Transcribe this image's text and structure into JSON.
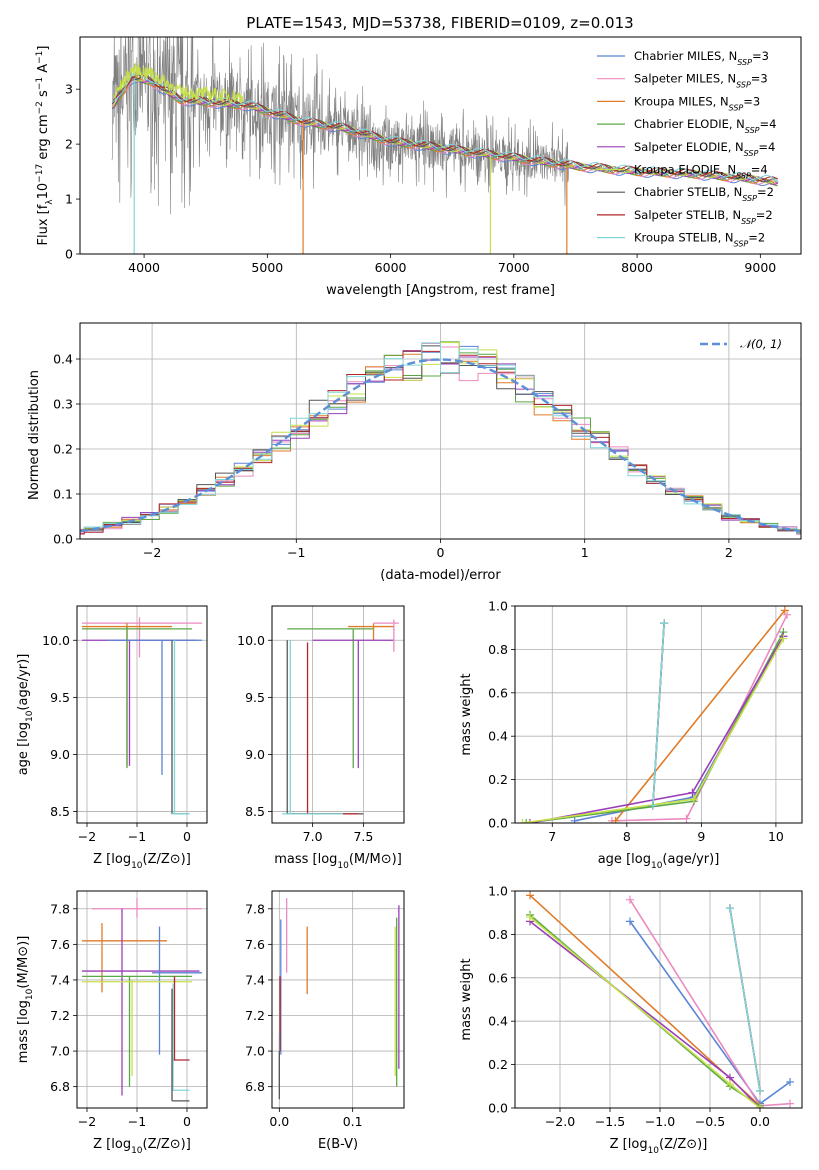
{
  "figure": {
    "title": "PLATE=1543, MJD=53738, FIBERID=0109, z=0.013"
  },
  "colors": {
    "Chabrier MILES": "#5b84d6",
    "Salpeter MILES": "#ec8ac0",
    "Kroupa MILES": "#e07b28",
    "Chabrier ELODIE": "#5aa845",
    "Salpeter ELODIE": "#9a3fb8",
    "Kroupa ELODIE": "#c6e04a",
    "Chabrier STELIB": "#555555",
    "Salpeter STELIB": "#b0262a",
    "Kroupa STELIB": "#7fd6d8",
    "data": "#808080",
    "gaussian": "#5b8fd6"
  },
  "chart_data": [
    {
      "id": "spectrum",
      "type": "line",
      "xlabel": "wavelength [Angstrom, rest frame]",
      "ylabel": "Flux [f$_\\lambda$10$^{-17}$ erg cm$^{-2}$ s$^{-1}$ A$^{-1}$]",
      "xlim": [
        3480,
        9330
      ],
      "ylim": [
        0,
        3.95
      ],
      "xticks": [
        "4000",
        "5000",
        "6000",
        "7000",
        "8000",
        "9000"
      ],
      "yticks": [
        "0",
        "1",
        "2",
        "3"
      ],
      "legend_position": "upper right",
      "legend": [
        {
          "label": "Chabrier MILES, N",
          "sub": "SSP",
          "suffix": "=3",
          "color": "#5b84d6"
        },
        {
          "label": "Salpeter MILES, N",
          "sub": "SSP",
          "suffix": "=3",
          "color": "#ec8ac0"
        },
        {
          "label": "Kroupa MILES, N",
          "sub": "SSP",
          "suffix": "=3",
          "color": "#e07b28"
        },
        {
          "label": "Chabrier ELODIE, N",
          "sub": "SSP",
          "suffix": "=4",
          "color": "#5aa845"
        },
        {
          "label": "Salpeter ELODIE, N",
          "sub": "SSP",
          "suffix": "=4",
          "color": "#9a3fb8"
        },
        {
          "label": "Kroupa ELODIE, N",
          "sub": "SSP",
          "suffix": "=4",
          "color": "#c6e04a"
        },
        {
          "label": "Chabrier STELIB, N",
          "sub": "SSP",
          "suffix": "=2",
          "color": "#555555"
        },
        {
          "label": "Salpeter STELIB, N",
          "sub": "SSP",
          "suffix": "=2",
          "color": "#b0262a"
        },
        {
          "label": "Kroupa STELIB, N",
          "sub": "SSP",
          "suffix": "=2",
          "color": "#7fd6d8"
        }
      ],
      "model_continuum": [
        [
          3750,
          2.7
        ],
        [
          3900,
          3.2
        ],
        [
          4050,
          3.15
        ],
        [
          4300,
          2.8
        ],
        [
          4600,
          2.75
        ],
        [
          4850,
          2.7
        ],
        [
          5000,
          2.6
        ],
        [
          5300,
          2.4
        ],
        [
          5600,
          2.3
        ],
        [
          6000,
          2.05
        ],
        [
          6500,
          1.9
        ],
        [
          7000,
          1.75
        ],
        [
          7500,
          1.6
        ],
        [
          8000,
          1.5
        ],
        [
          8500,
          1.45
        ],
        [
          9000,
          1.35
        ],
        [
          9150,
          1.3
        ]
      ],
      "noise_end_x": 7450
    },
    {
      "id": "residuals",
      "type": "area",
      "xlabel": "(data-model)/error",
      "ylabel": "Normed distribution",
      "xlim": [
        -2.5,
        2.5
      ],
      "ylim": [
        0,
        0.48
      ],
      "xticks": [
        "−2",
        "−1",
        "0",
        "1",
        "2"
      ],
      "yticks": [
        "0.0",
        "0.1",
        "0.2",
        "0.3",
        "0.4"
      ],
      "legend_label": "𝒩(0, 1)",
      "gaussian": {
        "mean": 0,
        "sigma": 1
      },
      "bins": 40
    },
    {
      "id": "age_vs_Z",
      "type": "scatter",
      "xlabel": "Z [log",
      "xlabel_sub": "10",
      "xlabel_rest": "(Z/Z⊙)]",
      "ylabel": "age  [log",
      "ylabel_sub": "10",
      "ylabel_rest": "(age/yr)]",
      "xlim": [
        -2.2,
        0.4
      ],
      "ylim": [
        8.4,
        10.3
      ],
      "xticks": [
        "−2",
        "−1",
        "0"
      ],
      "yticks": [
        "8.5",
        "9.0",
        "9.5",
        "10.0"
      ]
    },
    {
      "id": "age_vs_mass",
      "type": "scatter",
      "xlabel": "mass [log",
      "xlabel_sub": "10",
      "xlabel_rest": "(M/M⊙)]",
      "xlim": [
        6.6,
        7.9
      ],
      "ylim": [
        8.4,
        10.3
      ],
      "xticks": [
        "7.0",
        "7.5"
      ],
      "yticks": [
        "8.5",
        "9.0",
        "9.5",
        "10.0"
      ]
    },
    {
      "id": "massweight_vs_age",
      "type": "line",
      "xlabel": "age  [log",
      "xlabel_sub": "10",
      "xlabel_rest": "(age/yr)]",
      "ylabel": "mass weight",
      "xlim": [
        6.5,
        10.35
      ],
      "ylim": [
        0,
        1.0
      ],
      "xticks": [
        "7",
        "8",
        "9",
        "10"
      ],
      "yticks": [
        "0.0",
        "0.2",
        "0.4",
        "0.6",
        "0.8",
        "1.0"
      ],
      "series": [
        {
          "color": "#5b84d6",
          "x": [
            7.3,
            8.9,
            10.1
          ],
          "y": [
            0.01,
            0.12,
            0.86
          ]
        },
        {
          "color": "#ec8ac0",
          "x": [
            7.8,
            8.8,
            10.15
          ],
          "y": [
            0.01,
            0.02,
            0.96
          ]
        },
        {
          "color": "#e07b28",
          "x": [
            7.85,
            10.12
          ],
          "y": [
            0.01,
            0.98
          ]
        },
        {
          "color": "#5aa845",
          "x": [
            6.65,
            8.9,
            10.1
          ],
          "y": [
            0.0,
            0.1,
            0.88
          ]
        },
        {
          "color": "#9a3fb8",
          "x": [
            6.7,
            8.88,
            10.1
          ],
          "y": [
            0.0,
            0.14,
            0.86
          ]
        },
        {
          "color": "#c6e04a",
          "x": [
            6.6,
            8.9,
            10.1
          ],
          "y": [
            0.0,
            0.11,
            0.85
          ]
        },
        {
          "color": "#555555",
          "x": [
            8.35,
            8.5
          ],
          "y": [
            0.08,
            0.92
          ]
        },
        {
          "color": "#b0262a",
          "x": [
            8.35,
            8.5
          ],
          "y": [
            0.08,
            0.92
          ]
        },
        {
          "color": "#7fd6d8",
          "x": [
            8.35,
            8.5
          ],
          "y": [
            0.08,
            0.92
          ]
        }
      ]
    },
    {
      "id": "mass_vs_Z",
      "type": "scatter",
      "xlabel": "Z [log",
      "xlabel_sub": "10",
      "xlabel_rest": "(Z/Z⊙)]",
      "ylabel": "mass [log",
      "ylabel_sub": "10",
      "ylabel_rest": "(M/M⊙)]",
      "xlim": [
        -2.2,
        0.4
      ],
      "ylim": [
        6.68,
        7.9
      ],
      "xticks": [
        "−2",
        "−1",
        "0"
      ],
      "yticks": [
        "6.8",
        "7.0",
        "7.2",
        "7.4",
        "7.6",
        "7.8"
      ]
    },
    {
      "id": "mass_vs_EBV",
      "type": "scatter",
      "xlabel": "E(B-V)",
      "xlim": [
        -0.01,
        0.17
      ],
      "ylim": [
        6.68,
        7.9
      ],
      "xticks": [
        "0.0",
        "0.1"
      ],
      "yticks": [
        "6.8",
        "7.0",
        "7.2",
        "7.4",
        "7.6",
        "7.8"
      ]
    },
    {
      "id": "massweight_vs_Z",
      "type": "line",
      "xlabel": "Z [log",
      "xlabel_sub": "10",
      "xlabel_rest": "(Z/Z⊙)]",
      "ylabel": "mass weight",
      "xlim": [
        -2.45,
        0.42
      ],
      "ylim": [
        0,
        1.0
      ],
      "xticks": [
        "−2.0",
        "−1.5",
        "−1.0",
        "−0.5",
        "0.0"
      ],
      "yticks": [
        "0.0",
        "0.2",
        "0.4",
        "0.6",
        "0.8",
        "1.0"
      ],
      "series": [
        {
          "color": "#5b84d6",
          "x": [
            -1.3,
            0.0,
            0.3
          ],
          "y": [
            0.86,
            0.02,
            0.12
          ]
        },
        {
          "color": "#ec8ac0",
          "x": [
            -1.3,
            0.0,
            0.3
          ],
          "y": [
            0.96,
            0.01,
            0.02
          ]
        },
        {
          "color": "#e07b28",
          "x": [
            -2.3,
            0.0
          ],
          "y": [
            0.98,
            0.01
          ]
        },
        {
          "color": "#5aa845",
          "x": [
            -2.3,
            -0.3,
            0.0
          ],
          "y": [
            0.89,
            0.1,
            0.01
          ]
        },
        {
          "color": "#9a3fb8",
          "x": [
            -2.3,
            -0.3,
            0.0
          ],
          "y": [
            0.86,
            0.14,
            0.0
          ]
        },
        {
          "color": "#c6e04a",
          "x": [
            -2.3,
            -0.3,
            0.0
          ],
          "y": [
            0.88,
            0.11,
            0.0
          ]
        },
        {
          "color": "#555555",
          "x": [
            -0.3,
            0.0
          ],
          "y": [
            0.92,
            0.08
          ]
        },
        {
          "color": "#b0262a",
          "x": [
            -0.3,
            0.0
          ],
          "y": [
            0.92,
            0.08
          ]
        },
        {
          "color": "#7fd6d8",
          "x": [
            -0.3,
            0.0
          ],
          "y": [
            0.92,
            0.08
          ]
        }
      ]
    }
  ]
}
